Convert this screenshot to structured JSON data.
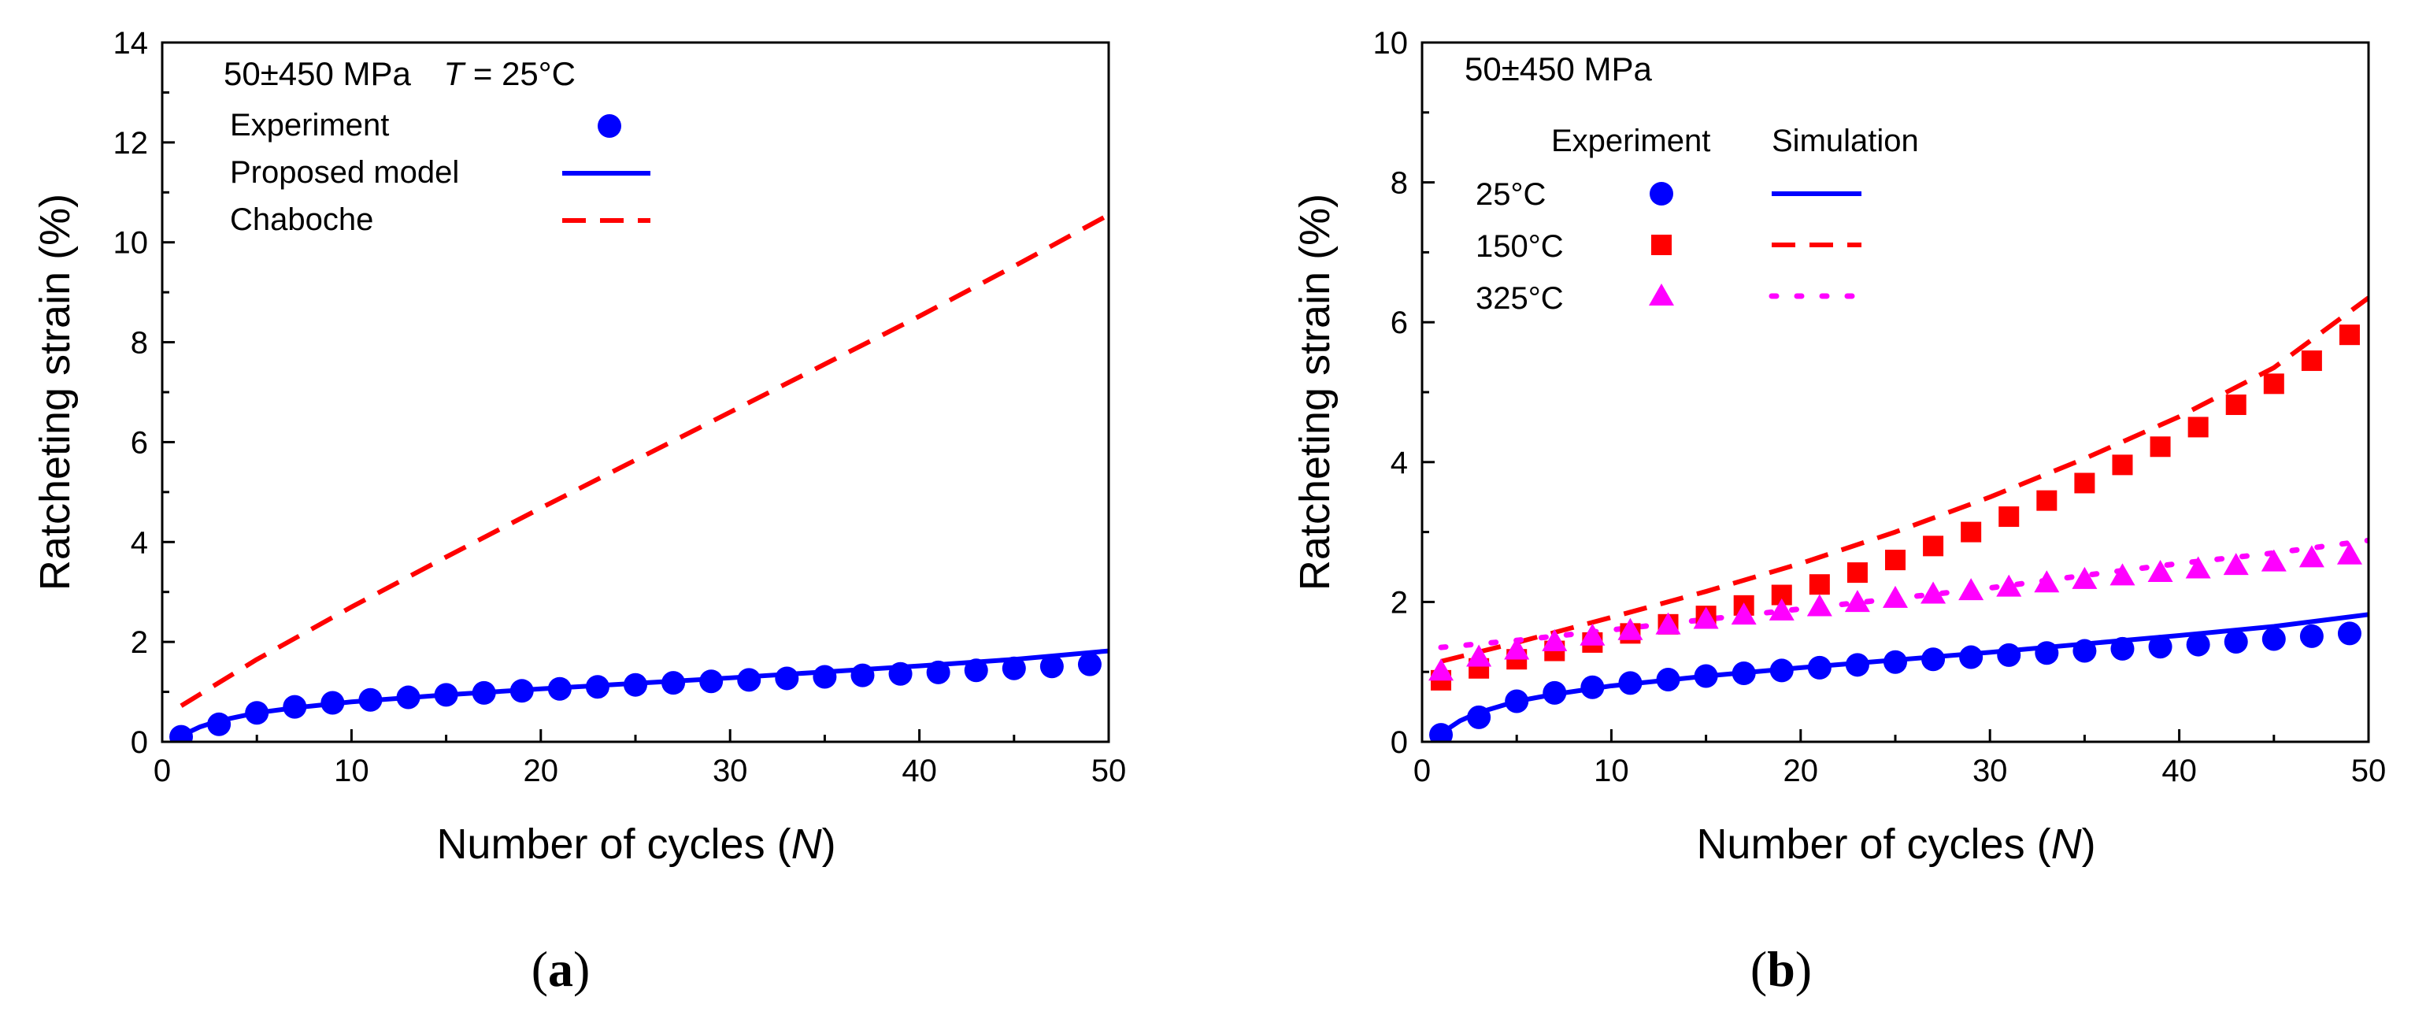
{
  "chart_data": [
    {
      "type": "scatter",
      "panel_label": "a",
      "title": "",
      "annotation": {
        "stress": "50±450 MPa",
        "temperature_var": "T",
        "temperature_value": " = 25°C"
      },
      "xlabel": {
        "text": "Number of cycles (",
        "var": "N",
        "suffix": ")"
      },
      "ylabel": "Ratcheting strain (%)",
      "xlim": [
        0,
        50
      ],
      "ylim": [
        0,
        14
      ],
      "xticks": [
        0,
        10,
        20,
        30,
        40,
        50
      ],
      "yticks": [
        0,
        2,
        4,
        6,
        8,
        10,
        12,
        14
      ],
      "grid": false,
      "legend_placement": "top-left",
      "series": [
        {
          "name": "Experiment",
          "kind": "scatter",
          "marker": "circle",
          "color": "#0000ff",
          "x": [
            1,
            3,
            5,
            7,
            9,
            11,
            13,
            15,
            17,
            19,
            21,
            23,
            25,
            27,
            29,
            31,
            33,
            35,
            37,
            39,
            41,
            43,
            45,
            47,
            49
          ],
          "y": [
            0.1,
            0.35,
            0.58,
            0.7,
            0.78,
            0.84,
            0.89,
            0.94,
            0.98,
            1.02,
            1.06,
            1.1,
            1.14,
            1.18,
            1.21,
            1.24,
            1.27,
            1.3,
            1.33,
            1.36,
            1.39,
            1.43,
            1.47,
            1.51,
            1.55
          ]
        },
        {
          "name": "Proposed model",
          "kind": "line",
          "dash": "solid",
          "color": "#0000ff",
          "x": [
            1,
            2,
            3,
            5,
            7,
            10,
            15,
            20,
            25,
            30,
            35,
            40,
            45,
            50
          ],
          "y": [
            0.12,
            0.3,
            0.42,
            0.58,
            0.68,
            0.8,
            0.94,
            1.06,
            1.17,
            1.28,
            1.4,
            1.52,
            1.65,
            1.82
          ]
        },
        {
          "name": "Chaboche",
          "kind": "line",
          "dash": "dashed",
          "color": "#ff0000",
          "x": [
            1,
            5,
            10,
            15,
            20,
            25,
            30,
            35,
            40,
            45,
            50
          ],
          "y": [
            0.72,
            1.65,
            2.7,
            3.7,
            4.68,
            5.64,
            6.6,
            7.56,
            8.52,
            9.52,
            10.55
          ]
        }
      ]
    },
    {
      "type": "scatter",
      "panel_label": "b",
      "title": "",
      "annotation": {
        "stress": "50±450 MPa"
      },
      "legend_headers": {
        "experiment": "Experiment",
        "simulation": "Simulation"
      },
      "xlabel": {
        "text": "Number of cycles (",
        "var": "N",
        "suffix": ")"
      },
      "ylabel": "Ratcheting strain (%)",
      "xlim": [
        0,
        50
      ],
      "ylim": [
        0,
        10
      ],
      "xticks": [
        0,
        10,
        20,
        30,
        40,
        50
      ],
      "yticks": [
        0,
        2,
        4,
        6,
        8,
        10
      ],
      "grid": false,
      "legend_placement": "top-left",
      "series": [
        {
          "name": "25°C",
          "marker": "circle",
          "color": "#0000ff",
          "sim_dash": "solid",
          "exp_x": [
            1,
            3,
            5,
            7,
            9,
            11,
            13,
            15,
            17,
            19,
            21,
            23,
            25,
            27,
            29,
            31,
            33,
            35,
            37,
            39,
            41,
            43,
            45,
            47,
            49
          ],
          "exp_y": [
            0.1,
            0.35,
            0.58,
            0.7,
            0.78,
            0.84,
            0.89,
            0.94,
            0.98,
            1.02,
            1.06,
            1.1,
            1.14,
            1.18,
            1.21,
            1.24,
            1.27,
            1.3,
            1.33,
            1.36,
            1.39,
            1.43,
            1.47,
            1.51,
            1.55
          ],
          "sim_x": [
            1,
            2,
            3,
            5,
            7,
            10,
            15,
            20,
            25,
            30,
            35,
            40,
            45,
            50
          ],
          "sim_y": [
            0.12,
            0.3,
            0.42,
            0.58,
            0.68,
            0.8,
            0.94,
            1.06,
            1.17,
            1.28,
            1.4,
            1.52,
            1.65,
            1.82
          ]
        },
        {
          "name": "150°C",
          "marker": "square",
          "color": "#ff0000",
          "sim_dash": "dashed",
          "exp_x": [
            1,
            3,
            5,
            7,
            9,
            11,
            13,
            15,
            17,
            19,
            21,
            23,
            25,
            27,
            29,
            31,
            33,
            35,
            37,
            39,
            41,
            43,
            45,
            47,
            49
          ],
          "exp_y": [
            0.88,
            1.05,
            1.18,
            1.3,
            1.42,
            1.55,
            1.68,
            1.8,
            1.95,
            2.1,
            2.25,
            2.42,
            2.6,
            2.8,
            3.0,
            3.22,
            3.45,
            3.7,
            3.96,
            4.22,
            4.5,
            4.82,
            5.12,
            5.45,
            5.82
          ],
          "sim_x": [
            1,
            5,
            10,
            15,
            20,
            25,
            30,
            35,
            40,
            45,
            50
          ],
          "sim_y": [
            1.15,
            1.42,
            1.78,
            2.15,
            2.55,
            3.0,
            3.5,
            4.05,
            4.65,
            5.35,
            6.35
          ]
        },
        {
          "name": "325°C",
          "marker": "triangle",
          "color": "#ff00ff",
          "sim_dash": "dotted",
          "exp_x": [
            1,
            3,
            5,
            7,
            9,
            11,
            13,
            15,
            17,
            19,
            21,
            23,
            25,
            27,
            29,
            31,
            33,
            35,
            37,
            39,
            41,
            43,
            45,
            47,
            49
          ],
          "exp_y": [
            1.0,
            1.2,
            1.3,
            1.42,
            1.5,
            1.58,
            1.66,
            1.74,
            1.8,
            1.86,
            1.92,
            1.98,
            2.04,
            2.1,
            2.15,
            2.2,
            2.26,
            2.31,
            2.36,
            2.41,
            2.46,
            2.51,
            2.56,
            2.62,
            2.66
          ],
          "sim_x": [
            1,
            5,
            10,
            15,
            20,
            25,
            30,
            35,
            40,
            45,
            50
          ],
          "sim_y": [
            1.35,
            1.45,
            1.6,
            1.75,
            1.9,
            2.05,
            2.2,
            2.38,
            2.55,
            2.7,
            2.88
          ]
        }
      ]
    }
  ]
}
